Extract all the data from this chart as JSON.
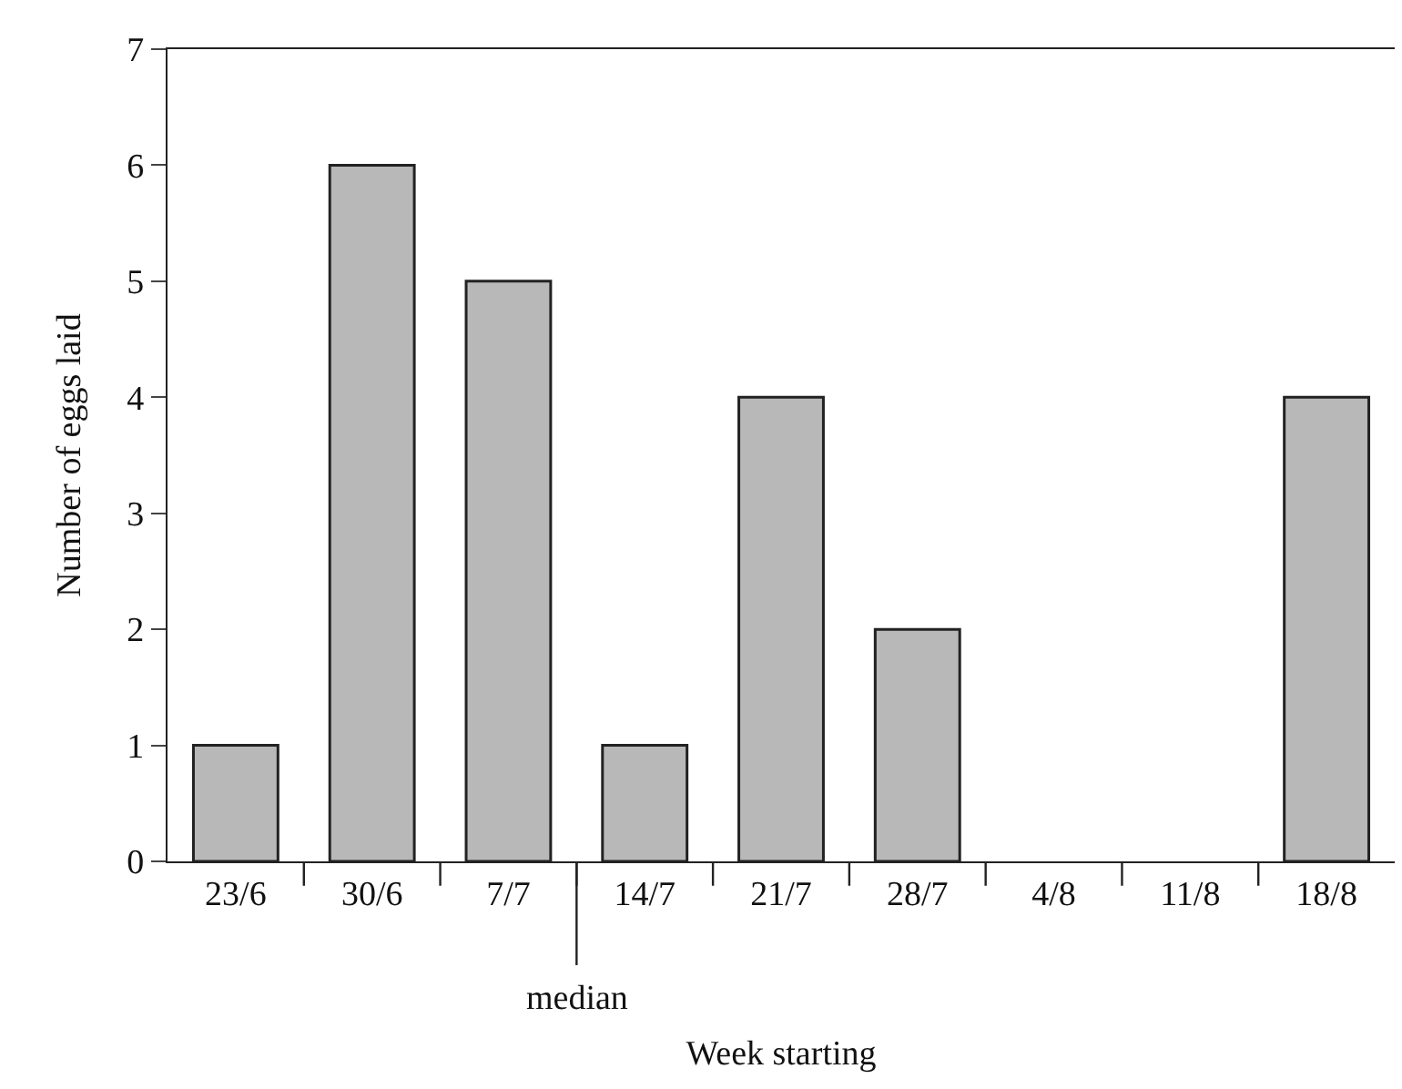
{
  "chart_data": {
    "type": "bar",
    "categories": [
      "23/6",
      "30/6",
      "7/7",
      "14/7",
      "21/7",
      "28/7",
      "4/8",
      "11/8",
      "18/8"
    ],
    "values": [
      1,
      6,
      5,
      1,
      4,
      2,
      0,
      0,
      4
    ],
    "color": "#b8b8b8",
    "ylim": [
      0,
      7
    ],
    "yticks": [
      0,
      1,
      2,
      3,
      4,
      5,
      6,
      7
    ],
    "xlabel": "Week starting",
    "ylabel": "Number of eggs laid",
    "annotations": [
      "median"
    ]
  }
}
